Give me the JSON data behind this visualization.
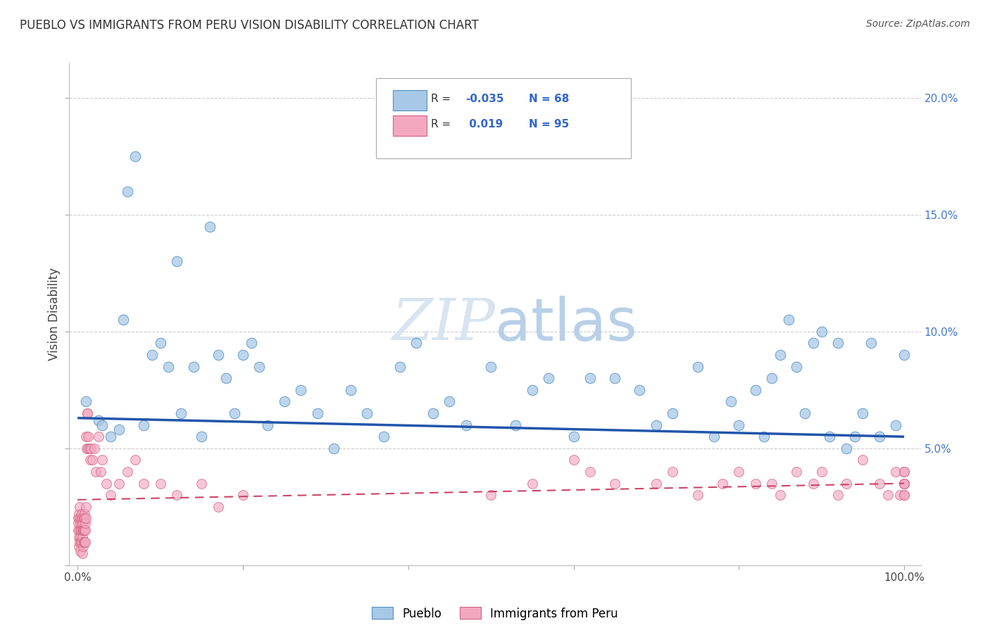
{
  "title": "PUEBLO VS IMMIGRANTS FROM PERU VISION DISABILITY CORRELATION CHART",
  "source": "Source: ZipAtlas.com",
  "ylabel": "Vision Disability",
  "xlim": [
    -1.0,
    102.0
  ],
  "ylim": [
    0.0,
    21.5
  ],
  "xticks": [
    0.0,
    20.0,
    40.0,
    60.0,
    80.0,
    100.0
  ],
  "xtick_labels": [
    "0.0%",
    "",
    "",
    "",
    "",
    "100.0%"
  ],
  "yticks_left": [
    0.0,
    5.0,
    10.0,
    15.0,
    20.0
  ],
  "ytick_labels_left": [
    "",
    "",
    "",
    "",
    ""
  ],
  "yticks_right": [
    5.0,
    10.0,
    15.0,
    20.0
  ],
  "ytick_labels_right": [
    "5.0%",
    "10.0%",
    "15.0%",
    "20.0%"
  ],
  "pueblo_color": "#a8c8e8",
  "peru_color": "#f4a8c0",
  "pueblo_edge_color": "#5090c0",
  "peru_edge_color": "#d06080",
  "blue_line_color": "#2255aa",
  "pink_line_color": "#cc4466",
  "blue_line_y_start": 6.3,
  "blue_line_y_end": 5.5,
  "pink_line_y_start": 2.8,
  "pink_line_y_end": 3.5,
  "legend_R_color": "#3366cc",
  "background_color": "#ffffff",
  "r_pueblo": -0.035,
  "n_pueblo": 68,
  "r_peru": 0.019,
  "n_peru": 95,
  "grid_color": "#cccccc",
  "watermark_color": "#d8e4f0",
  "pueblo_x": [
    1.0,
    2.5,
    3.0,
    4.0,
    5.0,
    5.5,
    6.0,
    7.0,
    8.0,
    9.0,
    10.0,
    11.0,
    12.0,
    12.5,
    14.0,
    15.0,
    16.0,
    17.0,
    18.0,
    19.0,
    20.0,
    21.0,
    22.0,
    23.0,
    25.0,
    27.0,
    29.0,
    31.0,
    33.0,
    35.0,
    37.0,
    39.0,
    41.0,
    43.0,
    45.0,
    47.0,
    50.0,
    53.0,
    55.0,
    57.0,
    60.0,
    62.0,
    65.0,
    68.0,
    70.0,
    72.0,
    75.0,
    77.0,
    79.0,
    80.0,
    82.0,
    83.0,
    84.0,
    85.0,
    86.0,
    87.0,
    88.0,
    89.0,
    90.0,
    91.0,
    92.0,
    93.0,
    94.0,
    95.0,
    96.0,
    97.0,
    99.0,
    100.0
  ],
  "pueblo_y": [
    7.0,
    6.2,
    6.0,
    5.5,
    5.8,
    10.5,
    16.0,
    17.5,
    6.0,
    9.0,
    9.5,
    8.5,
    13.0,
    6.5,
    8.5,
    5.5,
    14.5,
    9.0,
    8.0,
    6.5,
    9.0,
    9.5,
    8.5,
    6.0,
    7.0,
    7.5,
    6.5,
    5.0,
    7.5,
    6.5,
    5.5,
    8.5,
    9.5,
    6.5,
    7.0,
    6.0,
    8.5,
    6.0,
    7.5,
    8.0,
    5.5,
    8.0,
    8.0,
    7.5,
    6.0,
    6.5,
    8.5,
    5.5,
    7.0,
    6.0,
    7.5,
    5.5,
    8.0,
    9.0,
    10.5,
    8.5,
    6.5,
    9.5,
    10.0,
    5.5,
    9.5,
    5.0,
    5.5,
    6.5,
    9.5,
    5.5,
    6.0,
    9.0
  ],
  "peru_x": [
    0.05,
    0.08,
    0.1,
    0.12,
    0.15,
    0.18,
    0.2,
    0.22,
    0.25,
    0.28,
    0.3,
    0.32,
    0.35,
    0.38,
    0.4,
    0.42,
    0.45,
    0.48,
    0.5,
    0.52,
    0.55,
    0.58,
    0.6,
    0.62,
    0.65,
    0.68,
    0.7,
    0.72,
    0.75,
    0.78,
    0.8,
    0.82,
    0.85,
    0.88,
    0.9,
    0.92,
    0.95,
    0.98,
    1.0,
    1.05,
    1.1,
    1.15,
    1.2,
    1.25,
    1.3,
    1.4,
    1.5,
    1.6,
    1.8,
    2.0,
    2.2,
    2.5,
    2.8,
    3.0,
    3.5,
    4.0,
    5.0,
    6.0,
    7.0,
    8.0,
    10.0,
    12.0,
    15.0,
    17.0,
    20.0,
    50.0,
    55.0,
    60.0,
    62.0,
    65.0,
    70.0,
    72.0,
    75.0,
    78.0,
    80.0,
    82.0,
    84.0,
    85.0,
    87.0,
    89.0,
    90.0,
    92.0,
    93.0,
    95.0,
    97.0,
    98.0,
    99.0,
    99.5,
    100.0,
    100.0,
    100.0,
    100.0,
    100.0,
    100.0,
    100.0
  ],
  "peru_y": [
    2.0,
    1.5,
    1.8,
    2.2,
    0.8,
    1.2,
    1.5,
    2.5,
    1.0,
    2.0,
    1.8,
    1.2,
    0.6,
    1.5,
    2.0,
    1.0,
    1.5,
    2.2,
    1.8,
    1.0,
    0.5,
    1.5,
    2.0,
    1.2,
    1.8,
    0.8,
    1.5,
    2.0,
    1.0,
    1.5,
    2.2,
    1.5,
    1.0,
    2.0,
    1.5,
    1.0,
    1.8,
    2.5,
    2.0,
    5.5,
    5.0,
    6.5,
    6.5,
    5.0,
    5.5,
    5.0,
    4.5,
    5.0,
    4.5,
    5.0,
    4.0,
    5.5,
    4.0,
    4.5,
    3.5,
    3.0,
    3.5,
    4.0,
    4.5,
    3.5,
    3.5,
    3.0,
    3.5,
    2.5,
    3.0,
    3.0,
    3.5,
    4.5,
    4.0,
    3.5,
    3.5,
    4.0,
    3.0,
    3.5,
    4.0,
    3.5,
    3.5,
    3.0,
    4.0,
    3.5,
    4.0,
    3.0,
    3.5,
    4.5,
    3.5,
    3.0,
    4.0,
    3.0,
    3.5,
    4.0,
    3.5,
    3.0,
    4.0,
    3.5,
    3.0
  ]
}
